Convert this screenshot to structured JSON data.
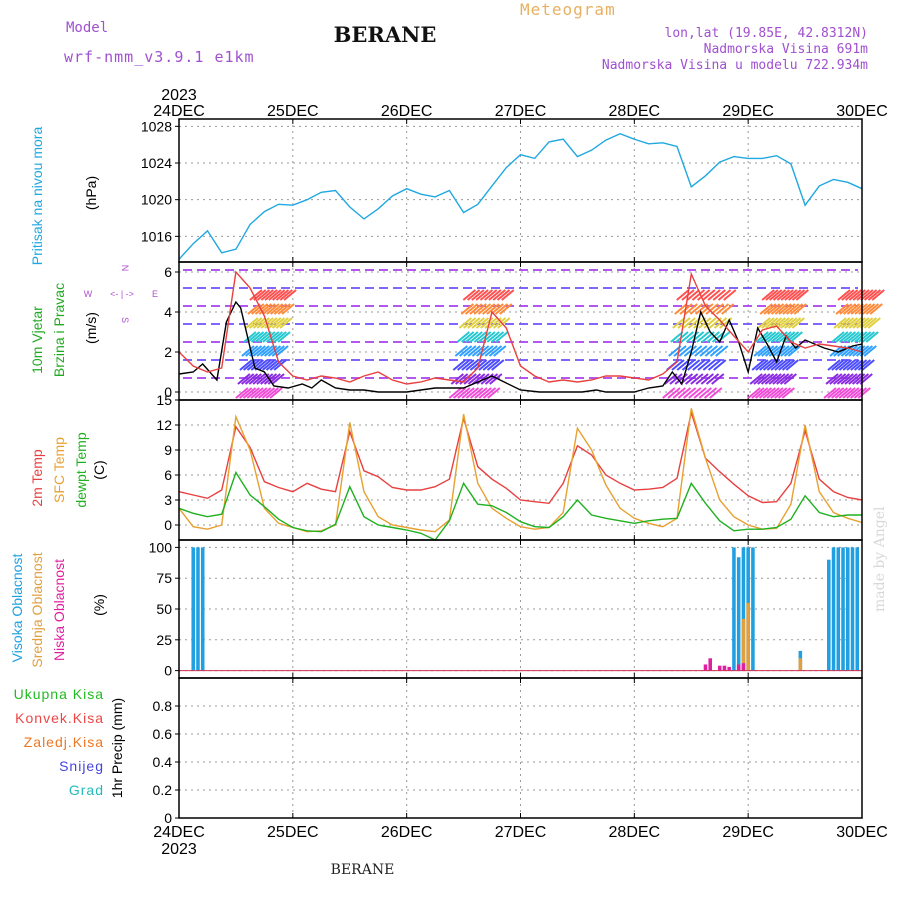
{
  "header": {
    "title": "BERANE",
    "meteogram_label": "Meteogram",
    "model_label": "Model",
    "model_name": "wrf-nmm_v3.9.1 e1km",
    "location_lines": [
      "lon,lat (19.85E, 42.8312N)",
      "Nadmorska Visina 691m",
      "Nadmorska Visina u modelu 722.934m"
    ],
    "credit": "made by Angel",
    "footer": "BERANE"
  },
  "time_axis": {
    "year": "2023",
    "labels": [
      "24DEC",
      "25DEC",
      "26DEC",
      "27DEC",
      "28DEC",
      "29DEC",
      "30DEC"
    ]
  },
  "panels": {
    "pressure": {
      "ylabel": [
        "Pritisak na nivou mora",
        "(hPa)"
      ],
      "ylabel_colors": [
        "#20a8e0",
        "#000000"
      ]
    },
    "wind": {
      "ylabel": [
        "10m Vjetar",
        "Brzina i Pravac",
        "(m/s)"
      ],
      "ylabel_colors": [
        "#22aa22",
        "#22aa22",
        "#000000"
      ],
      "compass": [
        "N",
        "S",
        "W",
        "E",
        "<- | ->"
      ]
    },
    "temp": {
      "ylabel": [
        "2m Temp",
        "SFC Temp",
        "dewpt Temp",
        "(C)"
      ],
      "ylabel_colors": [
        "#e84040",
        "#e8a030",
        "#20b020",
        "#000000"
      ]
    },
    "cloud": {
      "ylabel": [
        "Visoka Oblacnost",
        "Srednja Oblacnost",
        "Niska Oblacnost",
        "(%)"
      ],
      "ylabel_colors": [
        "#20a0e0",
        "#e0a040",
        "#e020a0",
        "#000000"
      ]
    },
    "precip": {
      "ylabel": "1hr Precip (mm)",
      "legend": [
        {
          "name": "Ukupna Kisa",
          "color": "#22bb22"
        },
        {
          "name": "Konvek.Kisa",
          "color": "#ee4444"
        },
        {
          "name": "Zaledj.Kisa",
          "color": "#ee7722"
        },
        {
          "name": "Snijeg",
          "color": "#4444dd"
        },
        {
          "name": "Grad",
          "color": "#22bbbb"
        }
      ]
    }
  },
  "chart_data": [
    {
      "type": "line",
      "ylabel": "Pritisak na nivou mora (hPa)",
      "ylim": [
        1013.2,
        1028.8
      ],
      "yticks": [
        1016,
        1020,
        1024,
        1028
      ],
      "xlim": [
        0,
        144
      ],
      "grid": true,
      "series": [
        {
          "color": "#20a8e0",
          "x": [
            0,
            3,
            6,
            9,
            12,
            15,
            18,
            21,
            24,
            27,
            30,
            33,
            36,
            39,
            42,
            45,
            48,
            51,
            54,
            57,
            60,
            63,
            66,
            69,
            72,
            75,
            78,
            81,
            84,
            87,
            90,
            93,
            96,
            99,
            102,
            105,
            108,
            111,
            114,
            117,
            120,
            123,
            126,
            129,
            132,
            135,
            138,
            141,
            144
          ],
          "y": [
            1013.5,
            1015.2,
            1016.6,
            1014.2,
            1014.6,
            1017.3,
            1018.7,
            1019.5,
            1019.4,
            1020.0,
            1020.8,
            1021.0,
            1019.2,
            1017.9,
            1019.0,
            1020.4,
            1021.2,
            1020.6,
            1020.3,
            1021.0,
            1018.6,
            1019.5,
            1021.5,
            1023.5,
            1024.9,
            1024.5,
            1026.3,
            1026.6,
            1024.7,
            1025.4,
            1026.5,
            1027.2,
            1026.6,
            1026.1,
            1026.2,
            1025.8,
            1021.4,
            1022.6,
            1024.1,
            1024.7,
            1024.5,
            1024.5,
            1024.8,
            1023.9,
            1019.4,
            1021.5,
            1022.2,
            1021.9,
            1021.2
          ]
        }
      ]
    },
    {
      "type": "line",
      "ylabel": "10m Vjetar Brzina i Pravac (m/s)",
      "ylim": [
        -0.4,
        6.5
      ],
      "yticks": [
        0,
        2,
        4,
        6
      ],
      "xlim": [
        0,
        144
      ],
      "grid": true,
      "series": [
        {
          "color": "#000000",
          "x": [
            0,
            3,
            5,
            8,
            10,
            12,
            13,
            16,
            18,
            20,
            23,
            26,
            28,
            30,
            33,
            36,
            39,
            42,
            48,
            54,
            60,
            66,
            72,
            76,
            79,
            82,
            85,
            88,
            90,
            94,
            96,
            99,
            102,
            104,
            106,
            108,
            110,
            112,
            114,
            116,
            118,
            120,
            122,
            124,
            126,
            128,
            130,
            132,
            134,
            136,
            139,
            142,
            144
          ],
          "y": [
            0.9,
            1.0,
            1.4,
            0.6,
            3.5,
            4.5,
            4.2,
            1.2,
            1.0,
            0.3,
            0.2,
            0.4,
            0.2,
            0.6,
            0.2,
            0.1,
            0.1,
            0.0,
            0.0,
            0.2,
            0.2,
            0.8,
            0.1,
            0.0,
            0.0,
            0.0,
            0.0,
            0.1,
            0.0,
            0.0,
            0.0,
            0.2,
            0.3,
            1.0,
            0.4,
            2.0,
            4.0,
            3.0,
            2.5,
            3.6,
            2.5,
            1.0,
            3.2,
            2.4,
            1.5,
            2.8,
            2.2,
            2.6,
            2.4,
            2.2,
            2.0,
            2.3,
            2.4
          ]
        },
        {
          "color": "#e84040",
          "x": [
            0,
            3,
            6,
            9,
            12,
            15,
            18,
            21,
            24,
            27,
            30,
            33,
            36,
            39,
            42,
            45,
            48,
            51,
            54,
            57,
            60,
            63,
            66,
            69,
            72,
            75,
            78,
            81,
            84,
            87,
            90,
            93,
            96,
            99,
            102,
            105,
            108,
            111,
            114,
            117,
            120,
            123,
            126,
            129,
            132,
            135,
            138,
            141,
            144
          ],
          "y": [
            2.0,
            1.3,
            1.0,
            1.2,
            6.0,
            5.2,
            3.8,
            1.5,
            0.8,
            0.6,
            0.8,
            0.7,
            0.5,
            0.8,
            1.0,
            0.6,
            0.4,
            0.5,
            0.7,
            0.6,
            0.5,
            1.2,
            4.0,
            3.2,
            1.3,
            0.8,
            0.5,
            0.6,
            0.5,
            0.6,
            0.8,
            0.8,
            0.7,
            0.6,
            0.9,
            1.5,
            5.9,
            4.3,
            3.6,
            2.8,
            2.0,
            3.1,
            3.3,
            2.5,
            2.2,
            2.4,
            2.3,
            2.2,
            2.0
          ]
        }
      ]
    },
    {
      "type": "line",
      "ylabel": "2m Temp / SFC Temp / dewpt Temp (C)",
      "ylim": [
        -1.8,
        15
      ],
      "yticks": [
        0,
        3,
        6,
        9,
        12,
        15
      ],
      "xlim": [
        0,
        144
      ],
      "grid": true,
      "series": [
        {
          "name": "2m Temp",
          "color": "#e84040",
          "x": [
            0,
            3,
            6,
            9,
            12,
            15,
            18,
            21,
            24,
            27,
            30,
            33,
            36,
            39,
            42,
            45,
            48,
            51,
            54,
            57,
            60,
            63,
            66,
            69,
            72,
            75,
            78,
            81,
            84,
            87,
            90,
            93,
            96,
            99,
            102,
            105,
            108,
            111,
            114,
            117,
            120,
            123,
            126,
            129,
            132,
            135,
            138,
            141,
            144
          ],
          "y": [
            4.0,
            3.6,
            3.2,
            4.2,
            11.8,
            9.3,
            5.2,
            4.5,
            4.0,
            5.0,
            4.3,
            4.0,
            11.2,
            6.5,
            5.8,
            4.5,
            4.2,
            4.2,
            4.6,
            5.5,
            12.8,
            7.0,
            5.5,
            4.4,
            3.0,
            2.8,
            2.6,
            5.0,
            9.5,
            8.4,
            6.0,
            5.0,
            4.2,
            4.3,
            4.5,
            5.6,
            13.5,
            8.0,
            6.4,
            4.9,
            3.5,
            2.7,
            2.8,
            5.0,
            11.3,
            5.5,
            4.0,
            3.3,
            3.0
          ]
        },
        {
          "name": "SFC Temp",
          "color": "#e8a030",
          "x": [
            0,
            3,
            6,
            9,
            12,
            15,
            18,
            21,
            24,
            27,
            30,
            33,
            36,
            39,
            42,
            45,
            48,
            51,
            54,
            57,
            60,
            63,
            66,
            69,
            72,
            75,
            78,
            81,
            84,
            87,
            90,
            93,
            96,
            99,
            102,
            105,
            108,
            111,
            114,
            117,
            120,
            123,
            126,
            129,
            132,
            135,
            138,
            141,
            144
          ],
          "y": [
            2.0,
            -0.2,
            -0.5,
            0.0,
            13.0,
            9.0,
            2.0,
            0.2,
            -0.3,
            -0.8,
            -0.7,
            0.0,
            12.3,
            4.0,
            1.0,
            0.0,
            -0.3,
            -0.6,
            -0.8,
            0.6,
            13.3,
            5.0,
            2.0,
            0.8,
            -0.2,
            -0.5,
            -0.3,
            1.5,
            11.6,
            9.0,
            4.8,
            2.0,
            0.8,
            0.2,
            -0.2,
            0.8,
            14.0,
            8.0,
            3.0,
            1.0,
            0.0,
            -0.5,
            -0.4,
            2.5,
            12.0,
            4.0,
            1.5,
            0.8,
            0.3
          ]
        },
        {
          "name": "dewpt Temp",
          "color": "#20b020",
          "x": [
            0,
            3,
            6,
            9,
            12,
            15,
            18,
            21,
            24,
            27,
            30,
            33,
            36,
            39,
            42,
            45,
            48,
            51,
            54,
            57,
            60,
            63,
            66,
            69,
            72,
            75,
            78,
            81,
            84,
            87,
            90,
            93,
            96,
            99,
            102,
            105,
            108,
            111,
            114,
            117,
            120,
            123,
            126,
            129,
            132,
            135,
            138,
            141,
            144
          ],
          "y": [
            2.0,
            1.4,
            1.0,
            1.3,
            6.3,
            3.6,
            2.2,
            0.7,
            -0.3,
            -0.7,
            -0.8,
            0.1,
            4.6,
            1.0,
            0.0,
            -0.3,
            -0.6,
            -1.0,
            -1.8,
            0.5,
            5.0,
            2.5,
            2.3,
            1.5,
            0.4,
            -0.2,
            -0.3,
            1.0,
            3.0,
            1.2,
            0.8,
            0.5,
            0.2,
            0.5,
            0.7,
            0.8,
            5.0,
            2.6,
            0.5,
            -0.7,
            -0.5,
            -0.5,
            -0.3,
            0.7,
            3.5,
            1.5,
            1.0,
            1.2,
            1.2
          ]
        }
      ]
    },
    {
      "type": "bar",
      "ylabel": "Oblacnost (%)",
      "ylim": [
        -6,
        106
      ],
      "yticks": [
        0,
        25,
        50,
        75,
        100
      ],
      "xlim": [
        0,
        144
      ],
      "grid": true,
      "series": [
        {
          "name": "Visoka Oblacnost",
          "color": "#20a0e0",
          "x": [
            3,
            4,
            5,
            117,
            118,
            119,
            120,
            121,
            131,
            137,
            138,
            139,
            140,
            141,
            142,
            143
          ],
          "values": [
            100,
            100,
            100,
            100,
            92,
            100,
            100,
            100,
            16,
            90,
            100,
            100,
            100,
            100,
            100,
            100
          ]
        },
        {
          "name": "Srednja Oblacnost",
          "color": "#e0a040",
          "x": [
            119,
            120,
            131
          ],
          "values": [
            42,
            55,
            10
          ]
        },
        {
          "name": "Niska Oblacnost",
          "color": "#e020a0",
          "x": [
            111,
            112,
            114,
            115,
            116,
            118,
            119
          ],
          "values": [
            5,
            10,
            4,
            4,
            3,
            5,
            6
          ]
        }
      ]
    },
    {
      "type": "line",
      "ylabel": "1hr Precip (mm)",
      "ylim": [
        0,
        1.0
      ],
      "yticks": [
        0,
        0.2,
        0.4,
        0.6,
        0.8
      ],
      "xlim": [
        0,
        144
      ],
      "grid": true,
      "series": []
    }
  ]
}
